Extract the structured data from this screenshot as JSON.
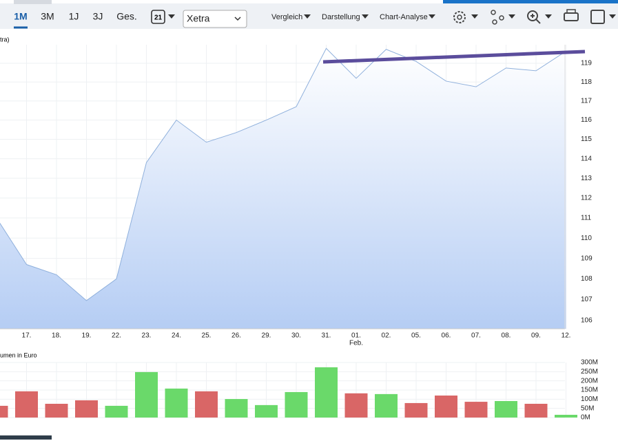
{
  "toolbar": {
    "ranges": [
      "1M",
      "3M",
      "1J",
      "3J",
      "Ges."
    ],
    "calendar_day": "21",
    "exchange": "Xetra",
    "menus": [
      "Vergleich",
      "Darstellung",
      "Chart-Analyse"
    ]
  },
  "chart_data": [
    {
      "type": "area",
      "y_label": "tra)",
      "log_scale": true,
      "grid": true,
      "color": "#8fb0dc",
      "categories": [
        null,
        "17.",
        "18.",
        "19.",
        "22.",
        "23.",
        "24.",
        "25.",
        "26.",
        "29.",
        "30.",
        "31.",
        "01.",
        "02.",
        "05.",
        "06.",
        "07.",
        "08.",
        "09.",
        "12."
      ],
      "month_label": "Feb.",
      "values": [
        111.0,
        108.7,
        108.2,
        106.95,
        108.0,
        113.8,
        116.0,
        114.85,
        115.35,
        116.0,
        116.7,
        119.8,
        118.2,
        119.75,
        119.1,
        118.05,
        117.75,
        118.75,
        118.6,
        119.65
      ],
      "ylim": [
        105.6,
        120
      ],
      "yticks": [
        106,
        107,
        108,
        109,
        110,
        111,
        112,
        113,
        114,
        115,
        116,
        117,
        118,
        119
      ]
    },
    {
      "type": "bar",
      "y_label": "umen in Euro",
      "grid": true,
      "values": [
        64000000,
        143000000,
        75000000,
        94000000,
        64000000,
        248000000,
        158000000,
        143000000,
        101000000,
        68000000,
        139000000,
        274000000,
        132000000,
        128000000,
        79000000,
        120000000,
        86000000,
        90000000,
        75000000,
        15000000
      ],
      "colors": [
        "#d96666",
        "#d96666",
        "#d96666",
        "#d96666",
        "#6ad96a",
        "#6ad96a",
        "#6ad96a",
        "#d96666",
        "#6ad96a",
        "#6ad96a",
        "#6ad96a",
        "#6ad96a",
        "#d96666",
        "#6ad96a",
        "#d96666",
        "#d96666",
        "#d96666",
        "#6ad96a",
        "#d96666",
        "#6ad96a"
      ],
      "ylim": [
        0,
        300000000
      ],
      "yticks": [
        {
          "value": 0,
          "label": "0M"
        },
        {
          "value": 50000000,
          "label": "50M"
        },
        {
          "value": 100000000,
          "label": "100M"
        },
        {
          "value": 150000000,
          "label": "150M"
        },
        {
          "value": 200000000,
          "label": "200M"
        },
        {
          "value": 250000000,
          "label": "250M"
        },
        {
          "value": 300000000,
          "label": "300M"
        }
      ]
    }
  ]
}
